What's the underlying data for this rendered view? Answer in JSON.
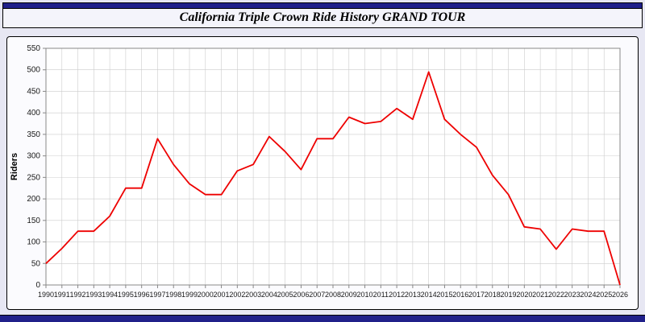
{
  "page": {
    "title": "California Triple Crown Ride History GRAND TOUR"
  },
  "colors": {
    "line": "#ee0000",
    "grid": "#cccccc",
    "plot_background": "#ffffff",
    "panel_background": "#fbfbfe",
    "page_background": "#e7e7f3",
    "header_strip": "#20208a",
    "axis_border": "#888888",
    "tick_label": "#1a1a1a"
  },
  "chart_data": {
    "type": "line",
    "title": "California Triple Crown Ride History GRAND TOUR",
    "xlabel": "",
    "ylabel": "Riders",
    "ylim": [
      0,
      550
    ],
    "ytick_step": 50,
    "grid": true,
    "legend": "none",
    "x": [
      "1990",
      "1991",
      "1992",
      "1993",
      "1994",
      "1995",
      "1996",
      "1997",
      "1998",
      "1999",
      "2000",
      "2001",
      "2002",
      "2003",
      "2004",
      "2005",
      "2006",
      "2007",
      "2008",
      "2009",
      "2010",
      "2011",
      "2012",
      "2013",
      "2014",
      "2015",
      "2016",
      "2017",
      "2018",
      "2019",
      "2020",
      "2021",
      "2022",
      "2023",
      "2024",
      "2025",
      "2026"
    ],
    "values": [
      50,
      85,
      125,
      125,
      160,
      225,
      225,
      340,
      280,
      235,
      210,
      210,
      265,
      280,
      345,
      310,
      268,
      340,
      340,
      390,
      375,
      380,
      410,
      385,
      495,
      385,
      350,
      320,
      255,
      210,
      135,
      130,
      83,
      130,
      125,
      125,
      0
    ]
  }
}
